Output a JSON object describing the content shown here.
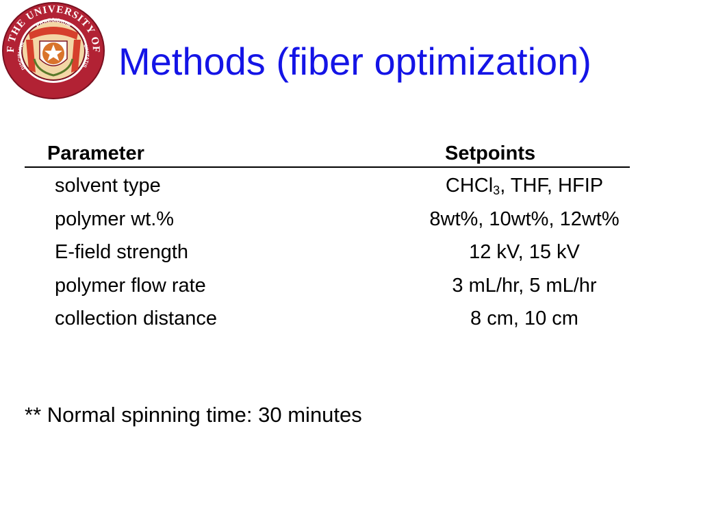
{
  "title": "Methods (fiber optimization)",
  "seal": {
    "ring_top_text": "SEAL OF THE UNIVERSITY OF TEXAS",
    "inner_top_text": "PRAESIDIUM",
    "inner_left_text": "DISCIPLINA",
    "inner_right_text": "CIVITATIS",
    "colors": {
      "ring": "#b22234",
      "banner": "#d6402c",
      "center": "#f1c178",
      "star_disc": "#d9742c"
    }
  },
  "table": {
    "header_parameter": "Parameter",
    "header_setpoints": "Setpoints",
    "rows": [
      {
        "parameter": "solvent type",
        "setpoint_pre": "CHCl",
        "setpoint_sub": "3",
        "setpoint_post": ", THF, HFIP"
      },
      {
        "parameter": "polymer wt.%",
        "setpoint_pre": "8wt%, 10wt%, 12wt%",
        "setpoint_sub": "",
        "setpoint_post": ""
      },
      {
        "parameter": "E-field strength",
        "setpoint_pre": "12 kV, 15 kV",
        "setpoint_sub": "",
        "setpoint_post": ""
      },
      {
        "parameter": "polymer flow rate",
        "setpoint_pre": "3 mL/hr, 5 mL/hr",
        "setpoint_sub": "",
        "setpoint_post": ""
      },
      {
        "parameter": "collection distance",
        "setpoint_pre": "8 cm, 10 cm",
        "setpoint_sub": "",
        "setpoint_post": ""
      }
    ]
  },
  "footnote": "** Normal spinning time: 30 minutes"
}
